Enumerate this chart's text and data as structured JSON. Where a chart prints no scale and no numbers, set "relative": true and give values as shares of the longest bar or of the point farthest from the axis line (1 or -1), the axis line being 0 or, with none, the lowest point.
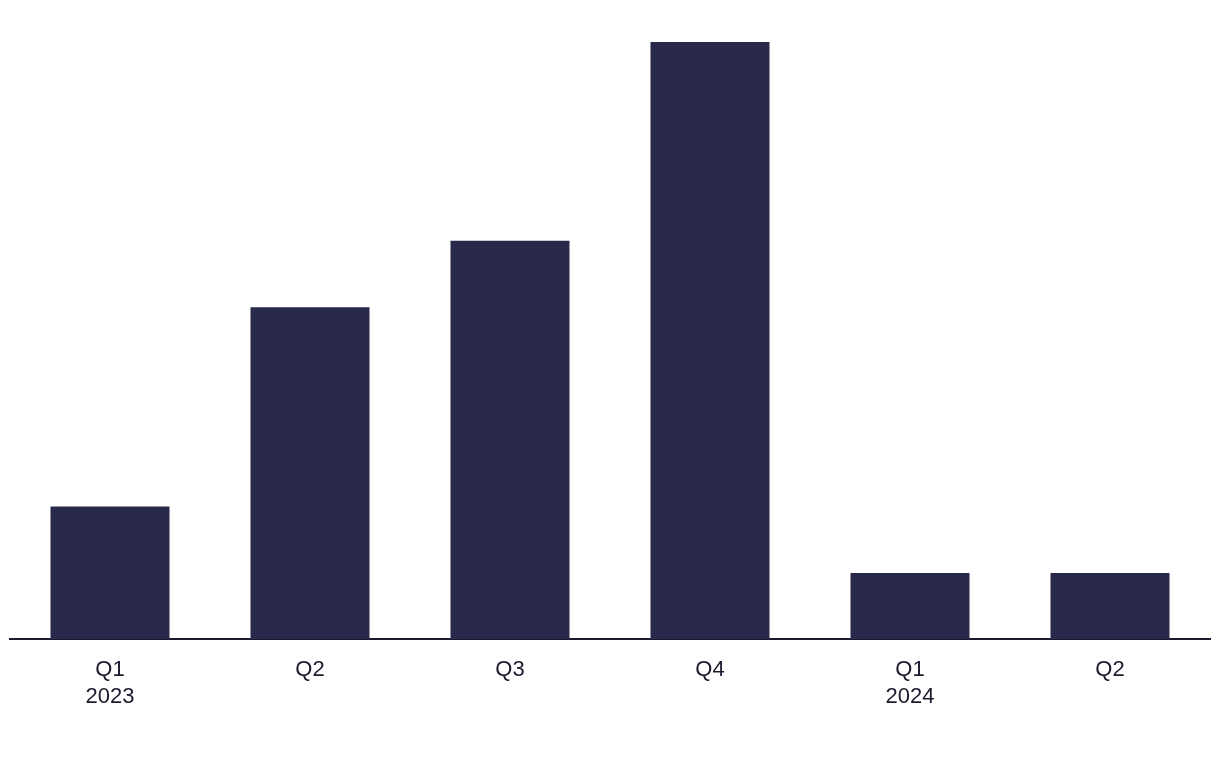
{
  "chart_data": {
    "type": "bar",
    "relative": true,
    "categories": [
      "Q1\n2023",
      "Q2",
      "Q3",
      "Q4",
      "Q1\n2024",
      "Q2"
    ],
    "values": [
      0.222,
      0.556,
      0.667,
      1,
      0.111,
      0.111
    ],
    "color": "#29294b",
    "grid": false,
    "legend": false
  }
}
